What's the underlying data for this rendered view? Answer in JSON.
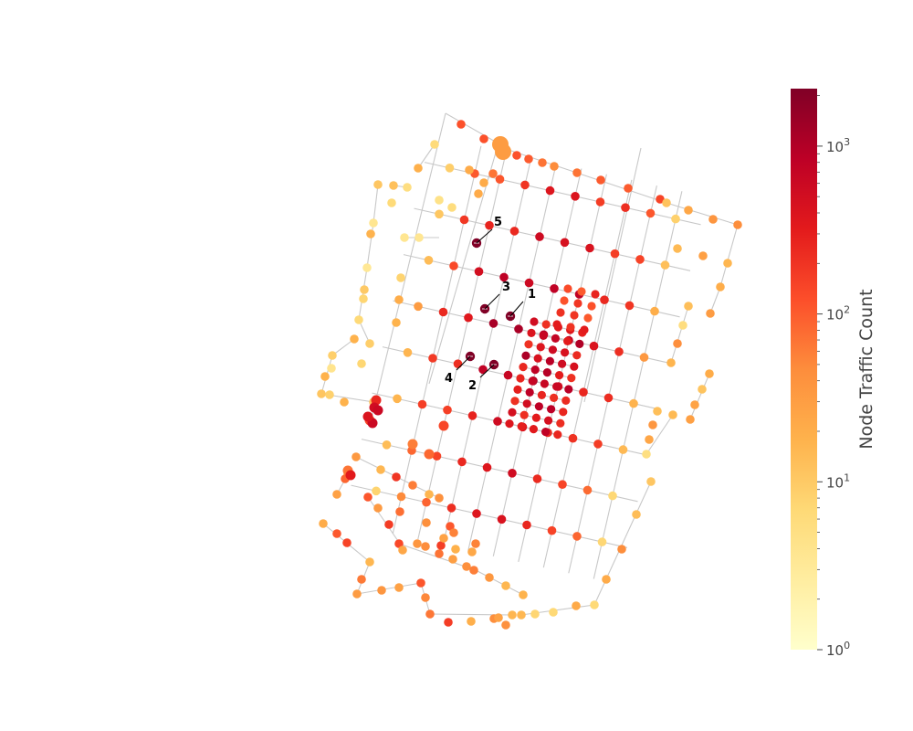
{
  "colorbar": {
    "label": "Node Traffic Count",
    "scale": "log",
    "range": [
      1,
      2200
    ],
    "ticks": [
      {
        "base": "10",
        "exp": "0",
        "value": 1
      },
      {
        "base": "10",
        "exp": "1",
        "value": 10
      },
      {
        "base": "10",
        "exp": "2",
        "value": 100
      },
      {
        "base": "10",
        "exp": "3",
        "value": 1000
      }
    ],
    "colormap": [
      "#ffffcc",
      "#ffeda0",
      "#fed976",
      "#feb24c",
      "#fd8d3c",
      "#fc4e2a",
      "#e31a1c",
      "#bd0026",
      "#800026"
    ]
  },
  "annotations": [
    {
      "label": "1"
    },
    {
      "label": "2"
    },
    {
      "label": "3"
    },
    {
      "label": "4"
    },
    {
      "label": "5"
    }
  ],
  "colors": {
    "edge": "#c8c8c8",
    "annotation_node": "#800026"
  }
}
